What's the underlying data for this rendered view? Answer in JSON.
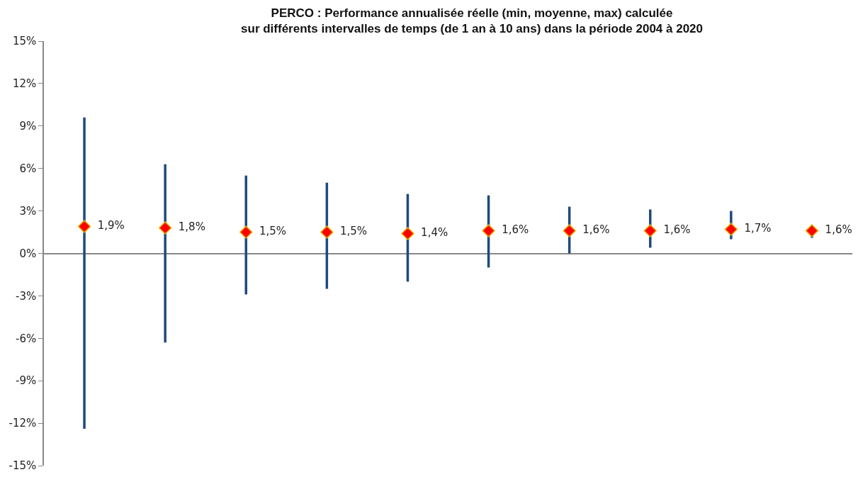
{
  "chart_data": {
    "type": "scatter",
    "title": "PERCO : Performance annualisée réelle (min, moyenne, max) calculée\nsur différents intervalles de temps (de 1 an à 10 ans) dans la période 2004 à 2020",
    "categories": [
      null,
      null,
      null,
      null,
      null,
      null,
      null,
      null,
      null,
      null
    ],
    "series": [
      {
        "color": "#ff0000",
        "values": [
          1.9,
          1.8,
          1.5,
          1.5,
          1.4,
          1.6,
          1.6,
          1.6,
          1.7,
          1.6
        ],
        "errors": [
          [
            -12.4,
            9.6
          ],
          [
            -6.3,
            6.3
          ],
          [
            -2.9,
            5.5
          ],
          [
            -2.5,
            5.0
          ],
          [
            -2.0,
            4.2
          ],
          [
            -1.0,
            4.1
          ],
          [
            0.0,
            3.3
          ],
          [
            0.4,
            3.1
          ],
          [
            1.0,
            3.0
          ],
          [
            1.1,
            1.9
          ]
        ],
        "value_labels": [
          "1,9%",
          "1,8%",
          "1,5%",
          "1,5%",
          "1,4%",
          "1,6%",
          "1,6%",
          "1,6%",
          "1,7%",
          "1,6%"
        ]
      }
    ],
    "marker": "diamond",
    "ylim": [
      -15,
      15
    ],
    "yticks": [
      {
        "value": -15,
        "label": "-15%"
      },
      {
        "value": -12,
        "label": "-12%"
      },
      {
        "value": -9,
        "label": "-9%"
      },
      {
        "value": -6,
        "label": "-6%"
      },
      {
        "value": -3,
        "label": "-3%"
      },
      {
        "value": 0,
        "label": "0%"
      },
      {
        "value": 3,
        "label": "3%"
      },
      {
        "value": 6,
        "label": "6%"
      },
      {
        "value": 9,
        "label": "9%"
      },
      {
        "value": 12,
        "label": "12%"
      },
      {
        "value": 15,
        "label": "15%"
      }
    ],
    "tick_labels": "y",
    "legend": false
  }
}
